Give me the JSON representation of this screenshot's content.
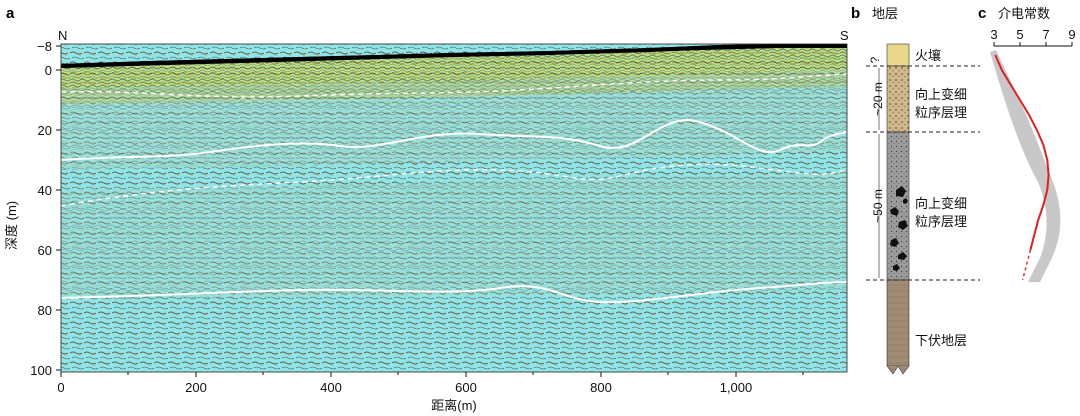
{
  "panels": {
    "a": {
      "label": "a",
      "corner_left": "N",
      "corner_right": "S",
      "ylabel": "深度 (m)",
      "xlabel": "距离(m)",
      "y_ticks": [
        "−8",
        "0",
        "20",
        "40",
        "60",
        "80",
        "100"
      ],
      "x_ticks": [
        "0",
        "200",
        "400",
        "600",
        "800",
        "1,000"
      ],
      "colors": {
        "radar_fill": "#8fe6ea",
        "speckle_dark": "#6b5a3a",
        "speckle_yellow": "#e8e02a",
        "surface": "#000000",
        "horizon": "#ffffff"
      }
    },
    "b": {
      "label": "b",
      "title": "地层",
      "unit_fire": "火壤",
      "unit_upper": "向上变细\n粒序层理",
      "unit_upper_line1": "向上变细",
      "unit_upper_line2": "粒序层理",
      "unit_lower_line1": "向上变细",
      "unit_lower_line2": "粒序层理",
      "unit_base": "下伏地层",
      "thickness_q": "?",
      "thickness_20": "~20 m",
      "thickness_50": "~50 m",
      "colors": {
        "fire": "#e8d98a",
        "upper": "#d2b98c",
        "lower": "#9d9d9d",
        "base": "#a08b75"
      }
    },
    "c": {
      "label": "c",
      "title": "介电常数",
      "x_ticks": [
        "3",
        "5",
        "7",
        "9"
      ],
      "colors": {
        "curve": "#e02020",
        "band": "#c8c8c8"
      }
    }
  },
  "chart_data": {
    "type": "line",
    "title": "介电常数",
    "xlabel": "",
    "ylabel": "",
    "xlim": [
      3,
      9
    ],
    "ylim": [
      100,
      -8
    ],
    "series": [
      {
        "x": [
          3.1,
          3.6,
          4.3,
          5.0,
          5.7,
          6.3,
          6.8,
          7.1,
          7.2,
          7.1,
          6.8,
          6.4,
          6.1,
          5.8
        ],
        "y": [
          -5,
          0,
          5,
          10,
          15,
          20,
          25,
          30,
          35,
          40,
          45,
          50,
          55,
          60
        ]
      }
    ]
  }
}
